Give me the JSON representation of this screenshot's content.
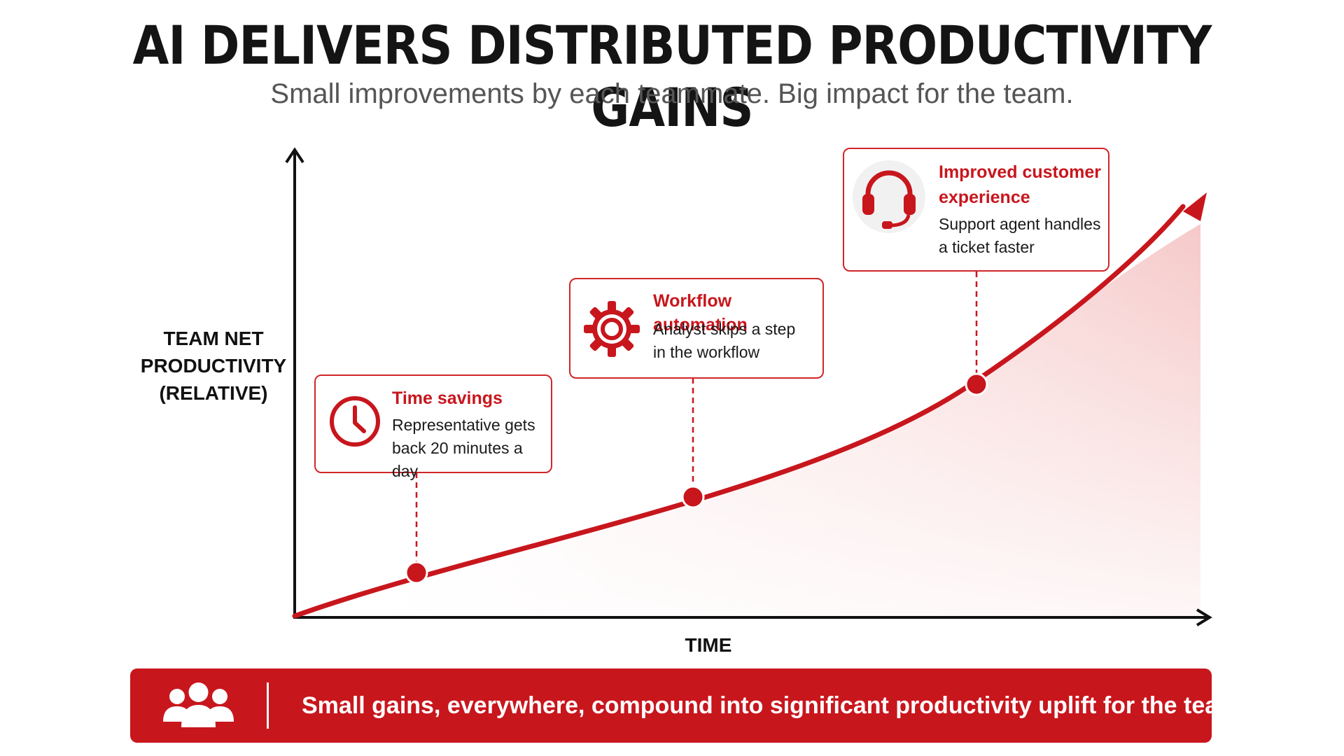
{
  "title": "AI DELIVERS DISTRIBUTED PRODUCTIVITY GAINS",
  "subtitle": "Small improvements by each teammate. Big impact for the team.",
  "colors": {
    "accent": "#c8161d",
    "axis": "#111111",
    "fill": "#f6c9c9"
  },
  "chart_data": {
    "type": "area",
    "xlabel": "TIME",
    "ylabel_lines": [
      "TEAM NET",
      "PRODUCTIVITY",
      "(RELATIVE)"
    ],
    "curve": "exponential growth, rising toward the top-right",
    "x_ticks": [],
    "y_ticks": [],
    "milestones": [
      {
        "title": "Time savings",
        "description": [
          "Representative gets",
          "back 20 minutes a day"
        ],
        "icon": "clock-icon"
      },
      {
        "title": "Workflow automation",
        "description": [
          "Analyst skips a step",
          "in the workflow"
        ],
        "icon": "gear-icon"
      },
      {
        "title_lines": [
          "Improved customer",
          "experience"
        ],
        "description": [
          "Support agent handles",
          "a ticket faster"
        ],
        "icon": "headset-icon"
      }
    ]
  },
  "banner": {
    "icon": "team-icon",
    "text": "Small gains, everywhere, compound into significant productivity uplift for the team."
  }
}
